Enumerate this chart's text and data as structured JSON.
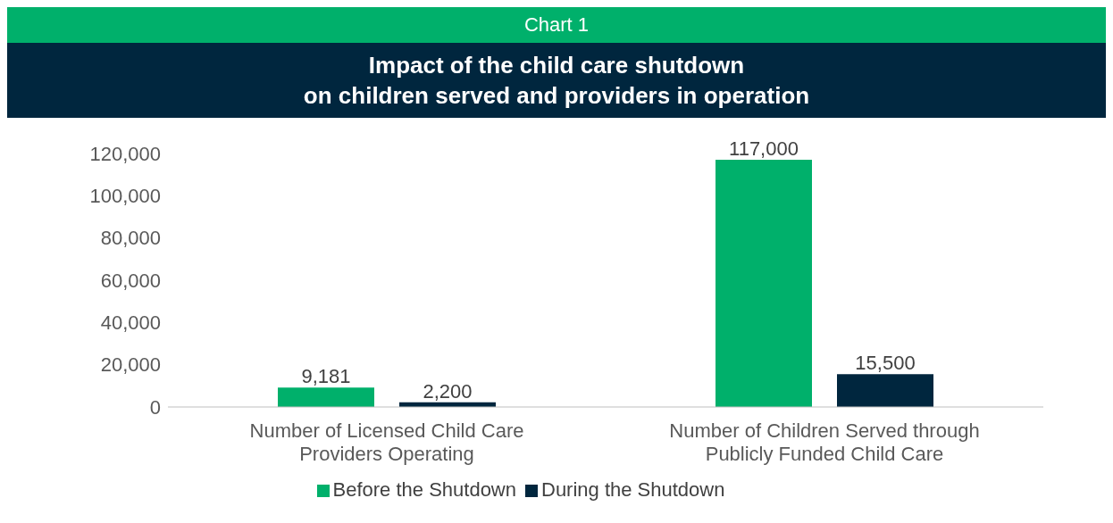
{
  "chart_data": {
    "type": "bar",
    "title": "Impact of the child care shutdown\non children served and providers in operation",
    "annotations": [
      "Chart 1"
    ],
    "categories": [
      "Number of Licensed Child Care Providers Operating",
      "Number of Children Served through Publicly Funded Child Care"
    ],
    "series": [
      {
        "name": "Before the Shutdown",
        "color": "#00b06b",
        "values": [
          9181,
          117000
        ],
        "value_labels": [
          "9,181",
          "117,000"
        ]
      },
      {
        "name": "During the Shutdown",
        "color": "#00263e",
        "values": [
          2200,
          15500
        ],
        "value_labels": [
          "2,200",
          "15,500"
        ]
      }
    ],
    "ylim": [
      0,
      120000
    ],
    "yticks": [
      {
        "value": 0,
        "label": "0"
      },
      {
        "value": 20000,
        "label": "20,000"
      },
      {
        "value": 40000,
        "label": "40,000"
      },
      {
        "value": 60000,
        "label": "60,000"
      },
      {
        "value": 80000,
        "label": "80,000"
      },
      {
        "value": 100000,
        "label": "100,000"
      },
      {
        "value": 120000,
        "label": "120,000"
      }
    ],
    "grid": false,
    "legend": "bottom"
  }
}
